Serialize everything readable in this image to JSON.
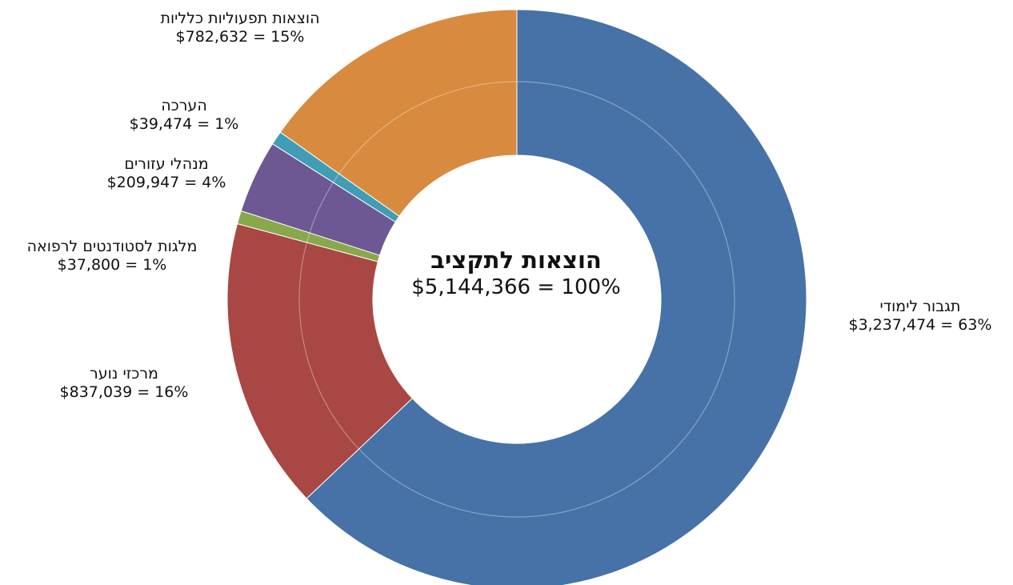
{
  "chart_data": {
    "type": "pie",
    "center_title": "הוצאות לתקציב",
    "center_value": "$5,144,366 = 100%",
    "slices": [
      {
        "name": "תגבור לימודי",
        "value": 3237474,
        "label": "$3,237,474 = 63%",
        "color": "#4672A8"
      },
      {
        "name": "מרכזי נוער",
        "value": 837039,
        "label": "$837,039 = 16%",
        "color": "#A84744"
      },
      {
        "name": "מלגות לסטודנטים לרפואה",
        "value": 37800,
        "label": "$37,800 = 1%",
        "color": "#88A84B"
      },
      {
        "name": "מנהלי עזורים",
        "value": 209947,
        "label": "$209,947 = 4%",
        "color": "#6E5894"
      },
      {
        "name": "הערכה",
        "value": 39474,
        "label": "$39,474 = 1%",
        "color": "#3F9DB5"
      },
      {
        "name": "הוצאות תפעוליות כלליות",
        "value": 782632,
        "label": "$782,632 = 15%",
        "color": "#D88A3E"
      }
    ]
  }
}
